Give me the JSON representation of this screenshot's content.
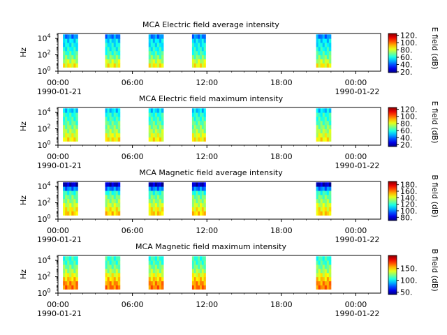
{
  "chart_data": [
    {
      "type": "heatmap",
      "title": "MCA  Electric field average intensity",
      "ylabel": "Hz",
      "yscale": "log",
      "ylim": [
        1,
        40000
      ],
      "yticks": [
        1,
        100,
        10000
      ],
      "ytick_labels": [
        [
          "10",
          "0"
        ],
        [
          "10",
          "2"
        ],
        [
          "10",
          "4"
        ]
      ],
      "xlim": [
        "1990-01-21 00:00",
        "1990-01-22 02:00"
      ],
      "xticks": [
        "00:00",
        "06:00",
        "12:00",
        "18:00",
        "00:00"
      ],
      "xtick_dates": [
        "1990-01-21",
        "",
        "",
        "",
        "1990-01-22"
      ],
      "colorbar": {
        "label": "E field (dB)",
        "range": [
          18,
          125
        ],
        "ticks": [
          20,
          40,
          60,
          80,
          100,
          120
        ],
        "tick_labels": [
          "20.",
          "40.",
          "60.",
          "80.",
          "100.",
          "120."
        ],
        "colormap": "jet"
      },
      "passes": [
        {
          "start_hour": 0.4,
          "end_hour": 1.6
        },
        {
          "start_hour": 3.8,
          "end_hour": 5.0
        },
        {
          "start_hour": 7.3,
          "end_hour": 8.5
        },
        {
          "start_hour": 10.8,
          "end_hour": 11.9
        },
        {
          "start_hour": 20.8,
          "end_hour": 22.0
        }
      ],
      "frequency_profile_db": [
        85,
        78,
        70,
        64,
        60,
        58,
        55,
        45
      ]
    },
    {
      "type": "heatmap",
      "title": "MCA  Electric field maximum intensity",
      "ylabel": "Hz",
      "yscale": "log",
      "ylim": [
        1,
        40000
      ],
      "yticks": [
        1,
        100,
        10000
      ],
      "ytick_labels": [
        [
          "10",
          "0"
        ],
        [
          "10",
          "2"
        ],
        [
          "10",
          "4"
        ]
      ],
      "xlim": [
        "1990-01-21 00:00",
        "1990-01-22 02:00"
      ],
      "xticks": [
        "00:00",
        "06:00",
        "12:00",
        "18:00",
        "00:00"
      ],
      "xtick_dates": [
        "1990-01-21",
        "",
        "",
        "",
        "1990-01-22"
      ],
      "colorbar": {
        "label": "E field (dB)",
        "range": [
          15,
          125
        ],
        "ticks": [
          20,
          40,
          60,
          80,
          100,
          120
        ],
        "tick_labels": [
          "20.",
          "40.",
          "60.",
          "80.",
          "100.",
          "120."
        ],
        "colormap": "jet"
      },
      "passes": [
        {
          "start_hour": 0.4,
          "end_hour": 1.6
        },
        {
          "start_hour": 3.8,
          "end_hour": 5.0
        },
        {
          "start_hour": 7.3,
          "end_hour": 8.5
        },
        {
          "start_hour": 10.8,
          "end_hour": 11.9
        },
        {
          "start_hour": 20.8,
          "end_hour": 22.0
        }
      ],
      "frequency_profile_db": [
        85,
        80,
        74,
        70,
        66,
        62,
        60,
        52
      ]
    },
    {
      "type": "heatmap",
      "title": "MCA  Magnetic field average intensity",
      "ylabel": "Hz",
      "yscale": "log",
      "ylim": [
        1,
        40000
      ],
      "yticks": [
        1,
        100,
        10000
      ],
      "ytick_labels": [
        [
          "10",
          "0"
        ],
        [
          "10",
          "2"
        ],
        [
          "10",
          "4"
        ]
      ],
      "xlim": [
        "1990-01-21 00:00",
        "1990-01-22 02:00"
      ],
      "xticks": [
        "00:00",
        "06:00",
        "12:00",
        "18:00",
        "00:00"
      ],
      "xtick_dates": [
        "1990-01-21",
        "",
        "",
        "",
        "1990-01-22"
      ],
      "colorbar": {
        "label": "B field (dB)",
        "range": [
          70,
          190
        ],
        "ticks": [
          80,
          100,
          120,
          140,
          160,
          180
        ],
        "tick_labels": [
          "80.",
          "100.",
          "120.",
          "140.",
          "160.",
          "180."
        ],
        "colormap": "jet"
      },
      "passes": [
        {
          "start_hour": 0.4,
          "end_hour": 1.6
        },
        {
          "start_hour": 3.8,
          "end_hour": 5.0
        },
        {
          "start_hour": 7.3,
          "end_hour": 8.5
        },
        {
          "start_hour": 10.8,
          "end_hour": 11.9
        },
        {
          "start_hour": 20.8,
          "end_hour": 22.0
        }
      ],
      "frequency_profile_db": [
        150,
        145,
        138,
        132,
        128,
        120,
        100,
        78
      ]
    },
    {
      "type": "heatmap",
      "title": "MCA  Magnetic field maximum intensity",
      "ylabel": "Hz",
      "yscale": "log",
      "ylim": [
        1,
        40000
      ],
      "yticks": [
        1,
        100,
        10000
      ],
      "ytick_labels": [
        [
          "10",
          "0"
        ],
        [
          "10",
          "2"
        ],
        [
          "10",
          "4"
        ]
      ],
      "xlim": [
        "1990-01-21 00:00",
        "1990-01-22 02:00"
      ],
      "xticks": [
        "00:00",
        "06:00",
        "12:00",
        "18:00",
        "00:00"
      ],
      "xtick_dates": [
        "1990-01-21",
        "",
        "",
        "",
        "1990-01-22"
      ],
      "colorbar": {
        "label": "B field (dB)",
        "range": [
          40,
          205
        ],
        "ticks": [
          50,
          100,
          150
        ],
        "tick_labels": [
          "50.",
          "100.",
          "150."
        ],
        "colormap": "jet"
      },
      "passes": [
        {
          "start_hour": 0.4,
          "end_hour": 1.6
        },
        {
          "start_hour": 3.8,
          "end_hour": 5.0
        },
        {
          "start_hour": 7.3,
          "end_hour": 8.5
        },
        {
          "start_hour": 10.8,
          "end_hour": 11.9
        },
        {
          "start_hour": 20.8,
          "end_hour": 22.0
        }
      ],
      "frequency_profile_db": [
        165,
        160,
        150,
        140,
        128,
        120,
        112,
        110
      ]
    }
  ]
}
